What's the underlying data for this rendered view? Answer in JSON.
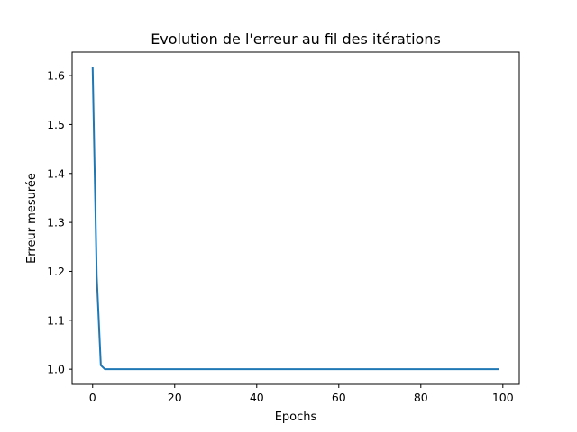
{
  "chart_data": {
    "type": "line",
    "title": "Evolution de l'erreur au fil des itérations",
    "xlabel": "Epochs",
    "ylabel": "Erreur mesurée",
    "xlim": [
      -5,
      104
    ],
    "ylim": [
      0.969,
      1.648
    ],
    "xticks": [
      0,
      20,
      40,
      60,
      80,
      100
    ],
    "yticks": [
      1.0,
      1.1,
      1.2,
      1.3,
      1.4,
      1.5,
      1.6
    ],
    "xtick_labels": [
      "0",
      "20",
      "40",
      "60",
      "80",
      "100"
    ],
    "ytick_labels": [
      "1.0",
      "1.1",
      "1.2",
      "1.3",
      "1.4",
      "1.5",
      "1.6"
    ],
    "grid": false,
    "series": [
      {
        "color": "#1f77b4",
        "x": [
          0,
          1,
          2,
          3,
          4,
          5,
          10,
          20,
          30,
          40,
          50,
          60,
          70,
          80,
          90,
          99
        ],
        "y": [
          1.618,
          1.19,
          1.008,
          1.0,
          1.0,
          1.0,
          1.0,
          1.0,
          1.0,
          1.0,
          1.0,
          1.0,
          1.0,
          1.0,
          1.0,
          1.0
        ]
      }
    ]
  }
}
